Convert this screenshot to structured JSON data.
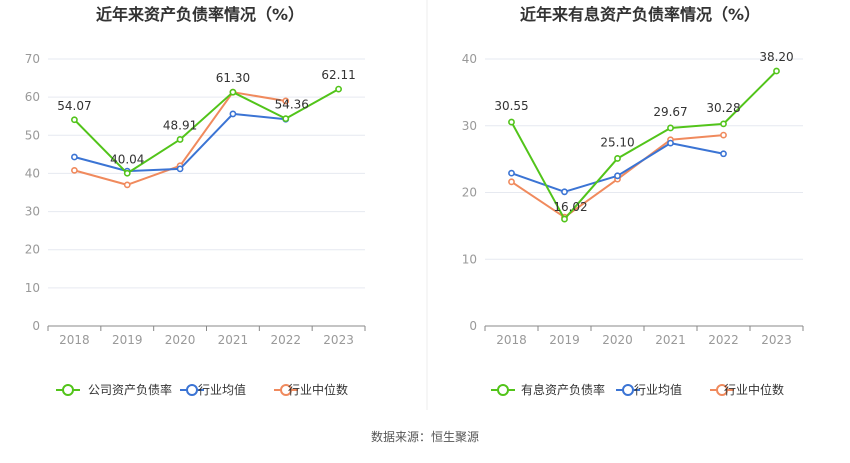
{
  "colors": {
    "company": "#52c41a",
    "industry_avg": "#3b74d4",
    "industry_median": "#f08a5d",
    "axis_text": "#999999",
    "grid": "#e6e9f0",
    "label_text": "#333333",
    "title_text": "#333333"
  },
  "chart_data": [
    {
      "type": "line",
      "title": "近年来资产负债率情况（%）",
      "categories": [
        "2018",
        "2019",
        "2020",
        "2021",
        "2022",
        "2023"
      ],
      "ylim": [
        0,
        70
      ],
      "yticks": [
        "0",
        "10",
        "20",
        "30",
        "40",
        "50",
        "60",
        "70"
      ],
      "grid": true,
      "legend_placement": "bottom",
      "series": [
        {
          "name": "公司资产负债率",
          "values": [
            54.07,
            40.04,
            48.91,
            61.3,
            54.36,
            62.11
          ],
          "labels": [
            "54.07",
            "40.04",
            "48.91",
            "61.30",
            "54.36",
            "62.11"
          ]
        },
        {
          "name": "行业均值",
          "values": [
            44.3,
            40.6,
            41.2,
            55.6,
            54.2,
            null
          ]
        },
        {
          "name": "行业中位数",
          "values": [
            40.8,
            37.0,
            42.0,
            61.3,
            59.0,
            null
          ]
        }
      ]
    },
    {
      "type": "line",
      "title": "近年来有息资产负债率情况（%）",
      "categories": [
        "2018",
        "2019",
        "2020",
        "2021",
        "2022",
        "2023"
      ],
      "ylim": [
        0,
        40
      ],
      "yticks": [
        "0",
        "10",
        "20",
        "30",
        "40"
      ],
      "grid": true,
      "legend_placement": "bottom",
      "series": [
        {
          "name": "有息资产负债率",
          "values": [
            30.55,
            16.02,
            25.1,
            29.67,
            30.28,
            38.2
          ],
          "labels": [
            "30.55",
            "16.02",
            "25.10",
            "29.67",
            "30.28",
            "38.20"
          ]
        },
        {
          "name": "行业均值",
          "values": [
            22.9,
            20.1,
            22.5,
            27.4,
            25.8,
            null
          ]
        },
        {
          "name": "行业中位数",
          "values": [
            21.6,
            16.3,
            22.0,
            27.9,
            28.6,
            null
          ]
        }
      ]
    }
  ],
  "footer": {
    "source": "数据来源：恒生聚源"
  }
}
